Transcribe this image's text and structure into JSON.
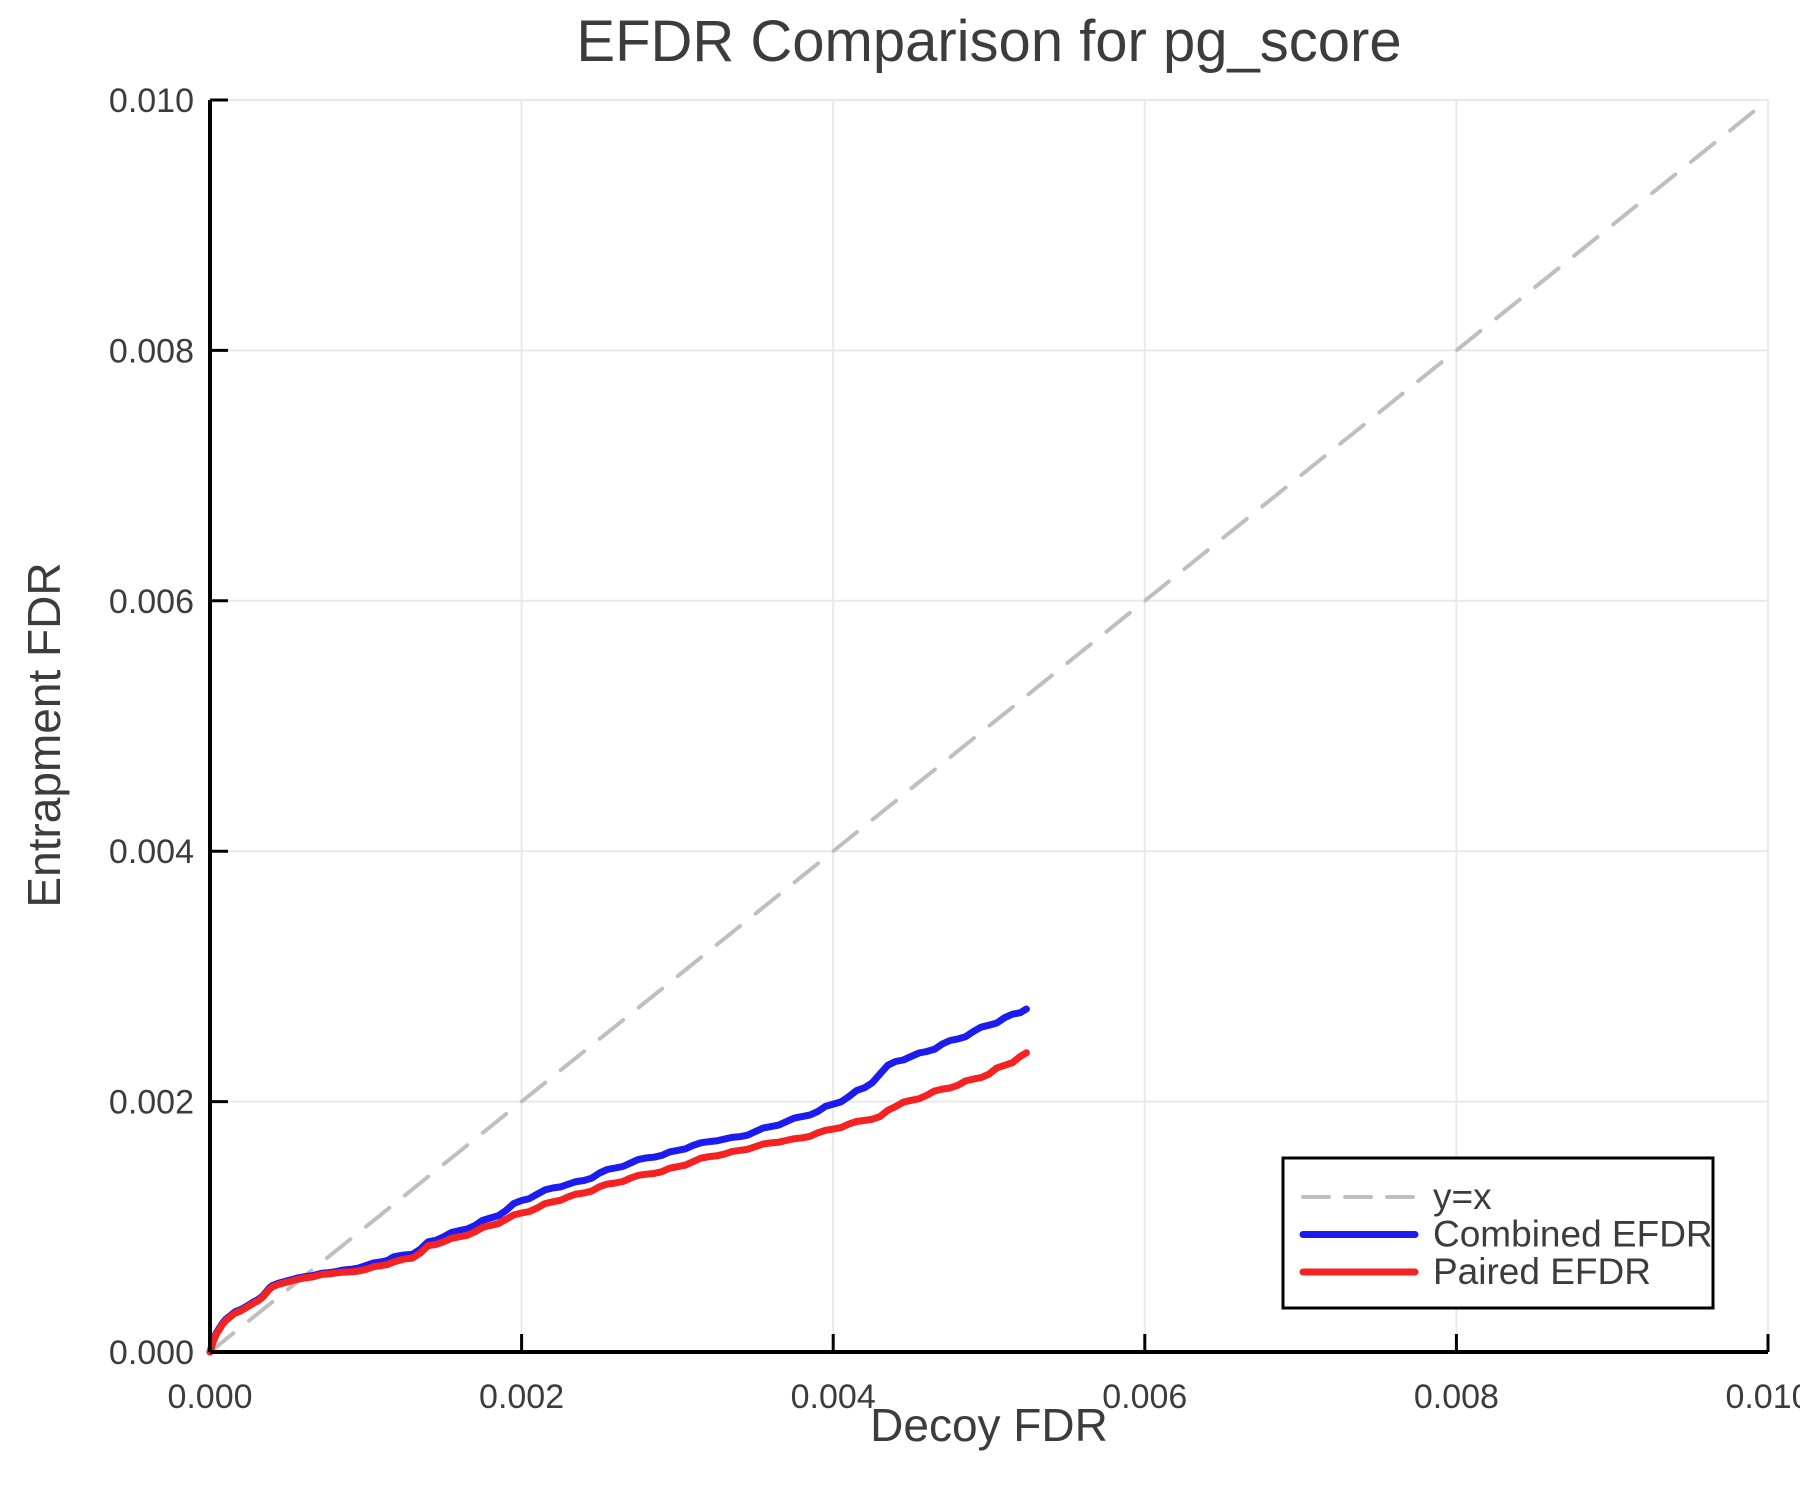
{
  "page": {
    "background": "#ffffff"
  },
  "chart_data": {
    "type": "line",
    "title": "EFDR Comparison for pg_score",
    "xlabel": "Decoy FDR",
    "ylabel": "Entrapment FDR",
    "xlim": [
      0,
      0.01
    ],
    "ylim": [
      0,
      0.01
    ],
    "x_tick_values": [
      0,
      0.002,
      0.004,
      0.006,
      0.008,
      0.01
    ],
    "x_tick_labels": [
      "0.000",
      "0.002",
      "0.004",
      "0.006",
      "0.008",
      "0.010"
    ],
    "y_tick_values": [
      0,
      0.002,
      0.004,
      0.006,
      0.008,
      0.01
    ],
    "y_tick_labels": [
      "0.000",
      "0.002",
      "0.004",
      "0.006",
      "0.008",
      "0.010"
    ],
    "grid": true,
    "legend_position": "bottom-right-inside",
    "colors": {
      "grid": "#e9e9e9",
      "axis": "#000000",
      "text": "#3c3c3c",
      "identity": "#bfbfbf",
      "combined": "#1c1cf0",
      "paired": "#f52222",
      "legend_border": "#000000",
      "legend_background": "#ffffff"
    },
    "series": [
      {
        "name": "y=x",
        "style": "dashed",
        "color": "#bfbfbf",
        "points": [
          [
            0,
            0
          ],
          [
            0.01,
            0.01
          ]
        ]
      },
      {
        "name": "Combined EFDR",
        "style": "solid",
        "color": "#1c1cf0",
        "points": [
          [
            0,
            0
          ],
          [
            2e-05,
            9e-05
          ],
          [
            4e-05,
            0.00015
          ],
          [
            6e-05,
            0.00019
          ],
          [
            8e-05,
            0.00023
          ],
          [
            0.0001,
            0.00026
          ],
          [
            0.00013,
            0.00029
          ],
          [
            0.00016,
            0.00032
          ],
          [
            0.0002,
            0.00034
          ],
          [
            0.00024,
            0.00037
          ],
          [
            0.00028,
            0.0004
          ],
          [
            0.00031,
            0.00042
          ],
          [
            0.00034,
            0.00045
          ],
          [
            0.00036,
            0.00048
          ],
          [
            0.00038,
            0.00051
          ],
          [
            0.0004,
            0.00053
          ],
          [
            0.00044,
            0.00055
          ],
          [
            0.0005,
            0.00057
          ],
          [
            0.00056,
            0.00059
          ],
          [
            0.0006,
            0.0006
          ],
          [
            0.00066,
            0.00061
          ],
          [
            0.00072,
            0.00063
          ],
          [
            0.0008,
            0.00064
          ],
          [
            0.0009,
            0.00066
          ],
          [
            0.001,
            0.00069
          ],
          [
            0.0011,
            0.00072
          ],
          [
            0.00118,
            0.00076
          ],
          [
            0.0013,
            0.00078
          ],
          [
            0.00135,
            0.00082
          ],
          [
            0.0014,
            0.00088
          ],
          [
            0.0015,
            0.00092
          ],
          [
            0.0016,
            0.00097
          ],
          [
            0.0017,
            0.00101
          ],
          [
            0.0018,
            0.00107
          ],
          [
            0.0019,
            0.00113
          ],
          [
            0.002,
            0.00121
          ],
          [
            0.0021,
            0.00126
          ],
          [
            0.0022,
            0.00131
          ],
          [
            0.0023,
            0.00134
          ],
          [
            0.0024,
            0.00137
          ],
          [
            0.0025,
            0.00143
          ],
          [
            0.0026,
            0.00147
          ],
          [
            0.0027,
            0.00151
          ],
          [
            0.0028,
            0.00155
          ],
          [
            0.0029,
            0.00157
          ],
          [
            0.003,
            0.00161
          ],
          [
            0.0031,
            0.00165
          ],
          [
            0.0032,
            0.00168
          ],
          [
            0.0033,
            0.0017
          ],
          [
            0.0034,
            0.00172
          ],
          [
            0.0035,
            0.00176
          ],
          [
            0.0036,
            0.0018
          ],
          [
            0.0037,
            0.00184
          ],
          [
            0.0038,
            0.00188
          ],
          [
            0.0039,
            0.00192
          ],
          [
            0.004,
            0.00198
          ],
          [
            0.0041,
            0.00204
          ],
          [
            0.0042,
            0.00211
          ],
          [
            0.00425,
            0.00215
          ],
          [
            0.0043,
            0.00222
          ],
          [
            0.00435,
            0.00229
          ],
          [
            0.0044,
            0.00232
          ],
          [
            0.0045,
            0.00236
          ],
          [
            0.0046,
            0.0024
          ],
          [
            0.0047,
            0.00246
          ],
          [
            0.0048,
            0.0025
          ],
          [
            0.0049,
            0.00256
          ],
          [
            0.005,
            0.00261
          ],
          [
            0.0051,
            0.00267
          ],
          [
            0.0052,
            0.00271
          ],
          [
            0.00524,
            0.00274
          ]
        ]
      },
      {
        "name": "Paired EFDR",
        "style": "solid",
        "color": "#f52222",
        "points": [
          [
            0,
            0
          ],
          [
            2e-05,
            8e-05
          ],
          [
            4e-05,
            0.00014
          ],
          [
            6e-05,
            0.00018
          ],
          [
            8e-05,
            0.00022
          ],
          [
            0.0001,
            0.00025
          ],
          [
            0.00013,
            0.00028
          ],
          [
            0.00016,
            0.00031
          ],
          [
            0.0002,
            0.00033
          ],
          [
            0.00024,
            0.00036
          ],
          [
            0.00028,
            0.00039
          ],
          [
            0.00031,
            0.00041
          ],
          [
            0.00034,
            0.00044
          ],
          [
            0.00036,
            0.00047
          ],
          [
            0.00038,
            0.0005
          ],
          [
            0.0004,
            0.00052
          ],
          [
            0.00044,
            0.00054
          ],
          [
            0.0005,
            0.00056
          ],
          [
            0.00056,
            0.00058
          ],
          [
            0.0006,
            0.00059
          ],
          [
            0.00066,
            0.0006
          ],
          [
            0.00072,
            0.00062
          ],
          [
            0.0008,
            0.00063
          ],
          [
            0.0009,
            0.00064
          ],
          [
            0.001,
            0.00066
          ],
          [
            0.0011,
            0.00069
          ],
          [
            0.00118,
            0.00072
          ],
          [
            0.0013,
            0.00075
          ],
          [
            0.00135,
            0.00079
          ],
          [
            0.0014,
            0.00085
          ],
          [
            0.0015,
            0.00088
          ],
          [
            0.0016,
            0.00092
          ],
          [
            0.0017,
            0.00096
          ],
          [
            0.0018,
            0.00101
          ],
          [
            0.0019,
            0.00106
          ],
          [
            0.002,
            0.00111
          ],
          [
            0.0021,
            0.00115
          ],
          [
            0.0022,
            0.0012
          ],
          [
            0.0023,
            0.00124
          ],
          [
            0.0024,
            0.00127
          ],
          [
            0.0025,
            0.00132
          ],
          [
            0.0026,
            0.00135
          ],
          [
            0.0027,
            0.00139
          ],
          [
            0.0028,
            0.00142
          ],
          [
            0.0029,
            0.00144
          ],
          [
            0.003,
            0.00148
          ],
          [
            0.0031,
            0.00152
          ],
          [
            0.0032,
            0.00156
          ],
          [
            0.0033,
            0.00158
          ],
          [
            0.0034,
            0.00161
          ],
          [
            0.0035,
            0.00164
          ],
          [
            0.0036,
            0.00167
          ],
          [
            0.0037,
            0.00169
          ],
          [
            0.0038,
            0.00171
          ],
          [
            0.0039,
            0.00175
          ],
          [
            0.004,
            0.00178
          ],
          [
            0.0041,
            0.00182
          ],
          [
            0.0042,
            0.00185
          ],
          [
            0.0043,
            0.00188
          ],
          [
            0.00435,
            0.00193
          ],
          [
            0.0044,
            0.00196
          ],
          [
            0.0045,
            0.00201
          ],
          [
            0.0046,
            0.00205
          ],
          [
            0.0047,
            0.0021
          ],
          [
            0.0048,
            0.00213
          ],
          [
            0.0049,
            0.00218
          ],
          [
            0.005,
            0.00222
          ],
          [
            0.0051,
            0.00229
          ],
          [
            0.0052,
            0.00236
          ],
          [
            0.00524,
            0.00239
          ]
        ]
      }
    ]
  }
}
